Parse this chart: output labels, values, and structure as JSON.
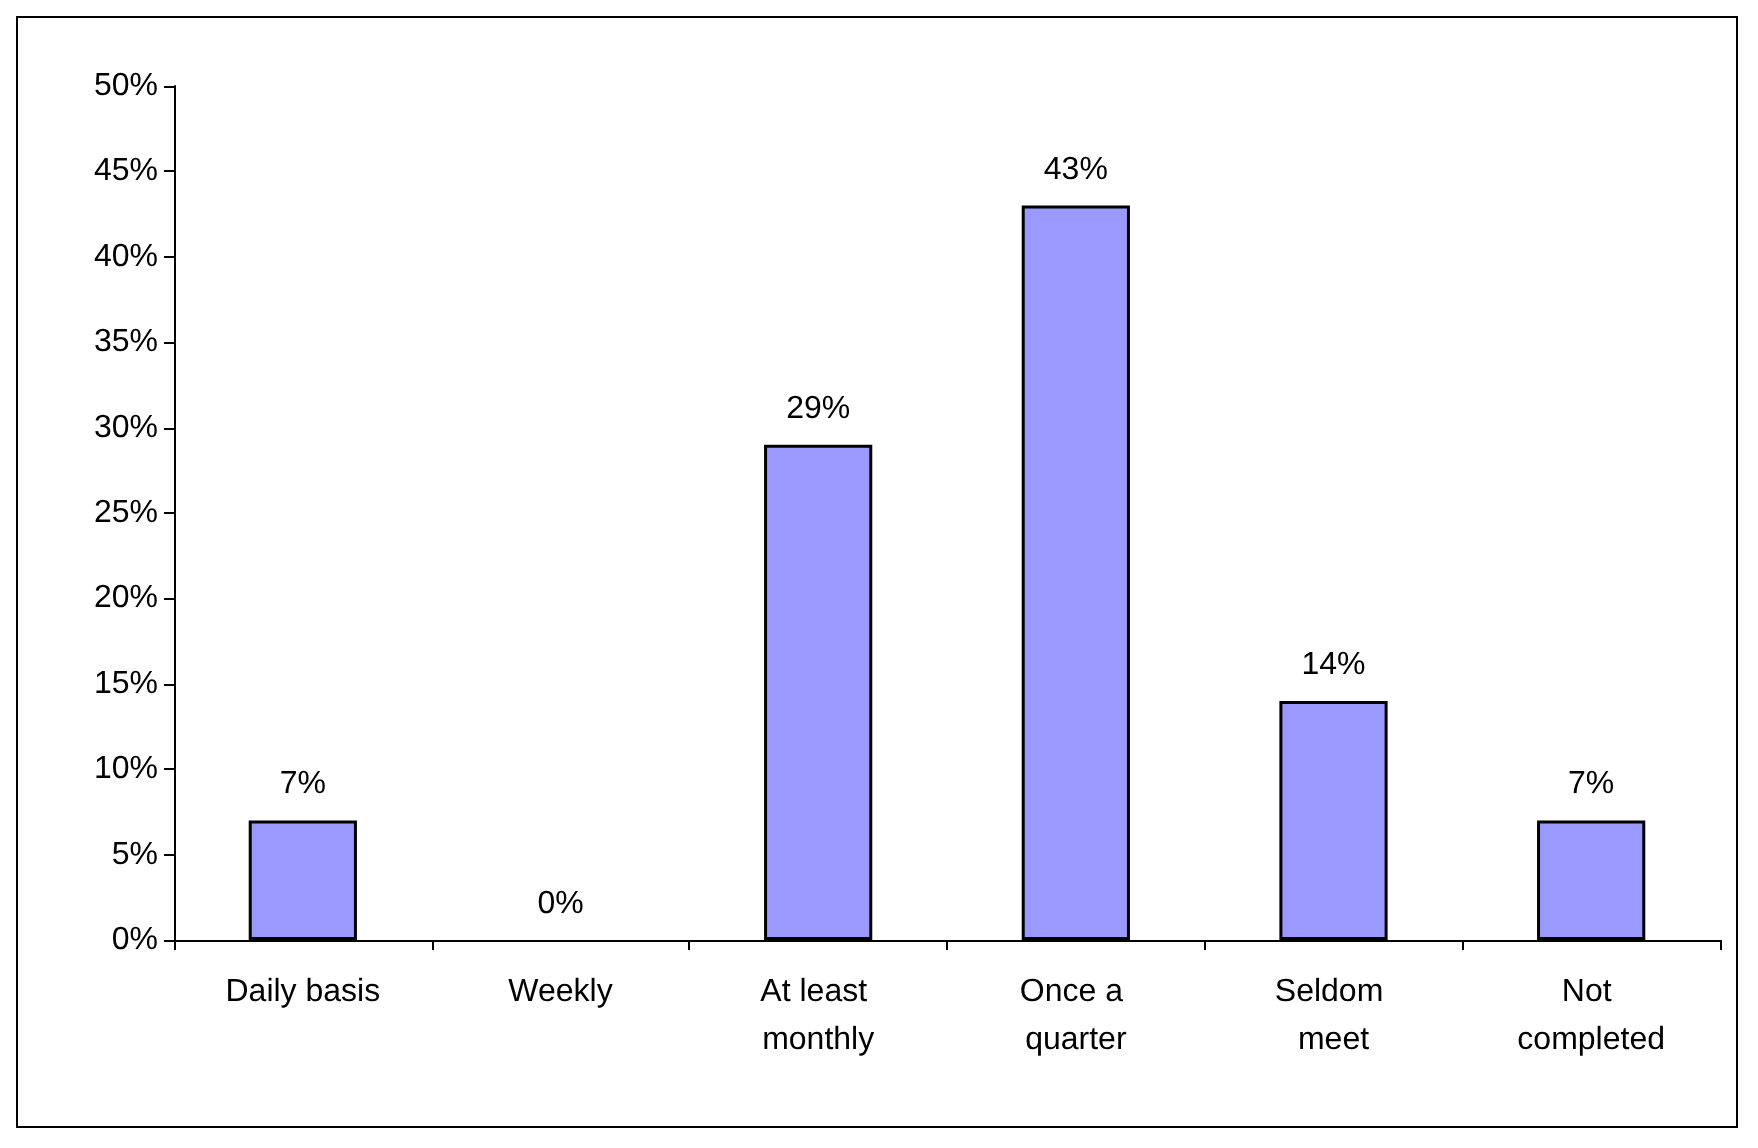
{
  "chart_data": {
    "type": "bar",
    "categories": [
      "Daily basis",
      "Weekly",
      "At least monthly",
      "Once a quarter",
      "Seldom meet",
      "Not completed"
    ],
    "values": [
      7,
      0,
      29,
      43,
      14,
      7
    ],
    "value_labels": [
      "7%",
      "0%",
      "29%",
      "43%",
      "14%",
      "7%"
    ],
    "color": "#9999ff",
    "ylim": [
      0,
      50
    ],
    "yticks": [
      {
        "value": 0,
        "label": "0%"
      },
      {
        "value": 5,
        "label": "5%"
      },
      {
        "value": 10,
        "label": "10%"
      },
      {
        "value": 15,
        "label": "15%"
      },
      {
        "value": 20,
        "label": "20%"
      },
      {
        "value": 25,
        "label": "25%"
      },
      {
        "value": 30,
        "label": "30%"
      },
      {
        "value": 35,
        "label": "35%"
      },
      {
        "value": 40,
        "label": "40%"
      },
      {
        "value": 45,
        "label": "45%"
      },
      {
        "value": 50,
        "label": "50%"
      }
    ],
    "grid": false
  }
}
